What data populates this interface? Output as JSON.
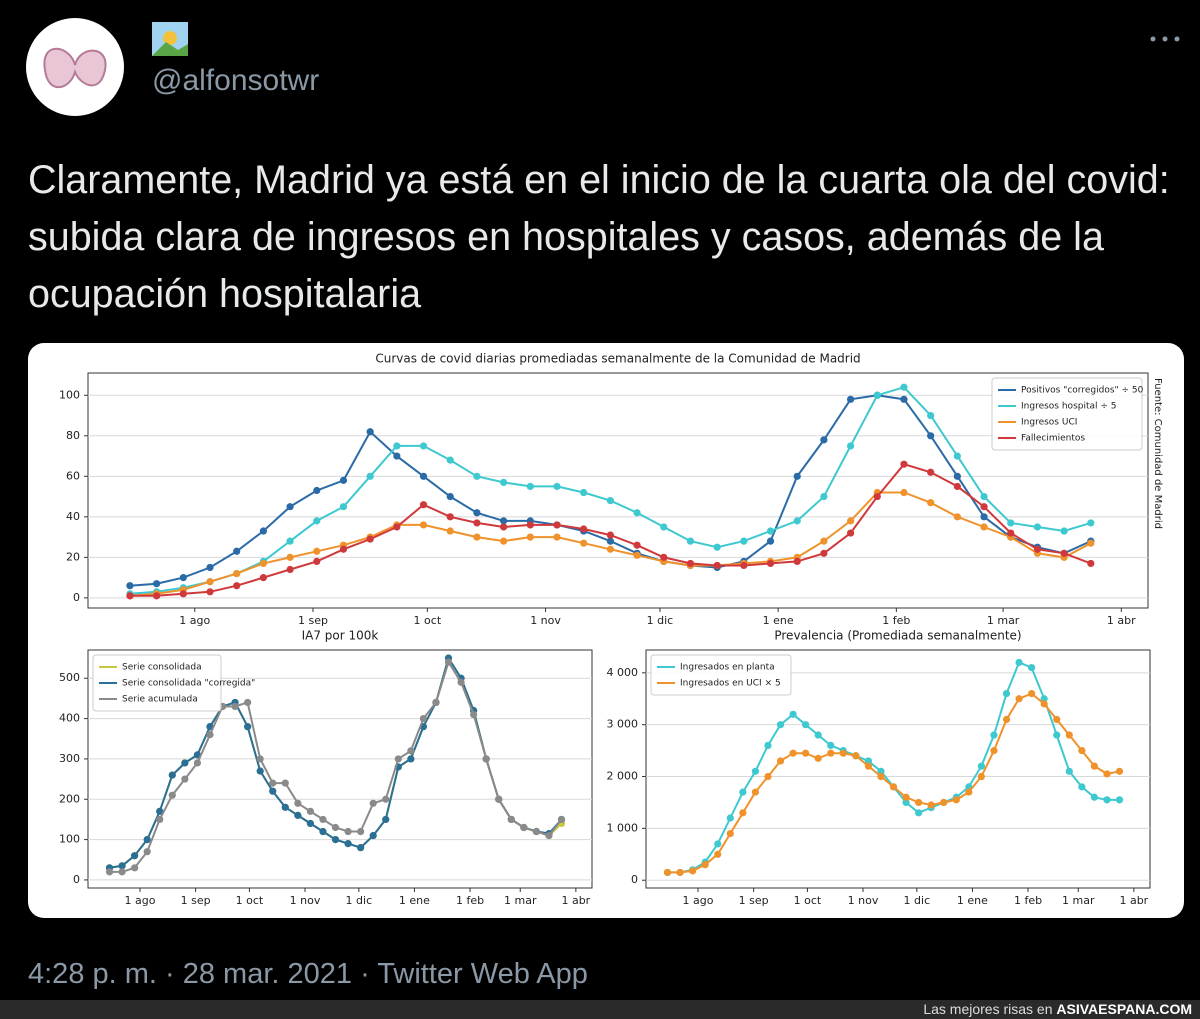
{
  "tweet": {
    "handle": "@alfonsotwr",
    "text": "Claramente, Madrid ya está en el inicio de la cuarta ola del covid: subida clara de ingresos en hospitales y casos, además de la ocupación hospitalaria",
    "timestamp": "4:28 p. m. · 28 mar. 2021 · Twitter Web App"
  },
  "footer": {
    "text": "Las mejores risas en",
    "site": "ASIVAESPANA.COM"
  },
  "chart_data": [
    {
      "type": "line",
      "title": "Curvas de covid diarias promediadas semanalmente de la Comunidad de Madrid",
      "annotation": "Fuente: Comunidad de Madrid",
      "x": [
        -17,
        -10,
        -3,
        4,
        11,
        18,
        25,
        32,
        39,
        46,
        53,
        60,
        67,
        74,
        81,
        88,
        95,
        102,
        109,
        116,
        123,
        130,
        137,
        144,
        151,
        158,
        165,
        172,
        179,
        186,
        193,
        200,
        207,
        214,
        221,
        228,
        235
      ],
      "xlim": [
        -28,
        250
      ],
      "xticks": [
        {
          "value": 0,
          "label": "1 ago"
        },
        {
          "value": 31,
          "label": "1 sep"
        },
        {
          "value": 61,
          "label": "1 oct"
        },
        {
          "value": 92,
          "label": "1 nov"
        },
        {
          "value": 122,
          "label": "1 dic"
        },
        {
          "value": 153,
          "label": "1 ene"
        },
        {
          "value": 184,
          "label": "1 feb"
        },
        {
          "value": 212,
          "label": "1 mar"
        },
        {
          "value": 243,
          "label": "1 abr"
        }
      ],
      "ylim": [
        -5,
        111
      ],
      "yticks": [
        0,
        20,
        40,
        60,
        80,
        100
      ],
      "grid": true,
      "legend": "upper right",
      "series": [
        {
          "name": "Positivos \"corregidos\" ÷ 50",
          "color": "#2a6aa6",
          "values": [
            6,
            7,
            10,
            15,
            23,
            33,
            45,
            53,
            58,
            82,
            70,
            60,
            50,
            42,
            38,
            38,
            36,
            33,
            28,
            22,
            18,
            16,
            15,
            18,
            28,
            60,
            78,
            98,
            100,
            98,
            80,
            60,
            40,
            30,
            25,
            22,
            28
          ]
        },
        {
          "name": "Ingresos hospital ÷ 5",
          "color": "#3ec8cf",
          "values": [
            2,
            3,
            5,
            8,
            12,
            18,
            28,
            38,
            45,
            60,
            75,
            75,
            68,
            60,
            57,
            55,
            55,
            52,
            48,
            42,
            35,
            28,
            25,
            28,
            33,
            38,
            50,
            75,
            100,
            104,
            90,
            70,
            50,
            37,
            35,
            33,
            37
          ]
        },
        {
          "name": "Ingresos UCI",
          "color": "#f0922b",
          "values": [
            1,
            2,
            4,
            8,
            12,
            17,
            20,
            23,
            26,
            30,
            36,
            36,
            33,
            30,
            28,
            30,
            30,
            27,
            24,
            21,
            18,
            16,
            16,
            17,
            18,
            20,
            28,
            38,
            52,
            52,
            47,
            40,
            35,
            30,
            22,
            20,
            27
          ]
        },
        {
          "name": "Fallecimientos",
          "color": "#d0393b",
          "values": [
            1,
            1,
            2,
            3,
            6,
            10,
            14,
            18,
            24,
            29,
            35,
            46,
            40,
            37,
            35,
            36,
            36,
            34,
            31,
            26,
            20,
            17,
            16,
            16,
            17,
            18,
            22,
            32,
            50,
            66,
            62,
            55,
            45,
            32,
            24,
            22,
            17
          ]
        }
      ]
    },
    {
      "type": "line",
      "title": "IA7 por 100k",
      "x": [
        -17,
        -10,
        -3,
        4,
        11,
        18,
        25,
        32,
        39,
        46,
        53,
        60,
        67,
        74,
        81,
        88,
        95,
        102,
        109,
        116,
        123,
        130,
        137,
        144,
        151,
        158,
        165,
        172,
        179,
        186,
        193,
        200,
        207,
        214,
        221,
        228,
        235
      ],
      "xlim": [
        -29,
        252
      ],
      "xticks": [
        {
          "value": 0,
          "label": "1 ago"
        },
        {
          "value": 31,
          "label": "1 sep"
        },
        {
          "value": 61,
          "label": "1 oct"
        },
        {
          "value": 92,
          "label": "1 nov"
        },
        {
          "value": 122,
          "label": "1 dic"
        },
        {
          "value": 153,
          "label": "1 ene"
        },
        {
          "value": 184,
          "label": "1 feb"
        },
        {
          "value": 212,
          "label": "1 mar"
        },
        {
          "value": 243,
          "label": "1 abr"
        }
      ],
      "ylim": [
        -20,
        570
      ],
      "yticks": [
        0,
        100,
        200,
        300,
        400,
        500
      ],
      "grid": true,
      "legend": "upper left",
      "series": [
        {
          "name": "Serie consolidada",
          "color": "#c8c83c",
          "values": [
            30,
            35,
            60,
            100,
            170,
            260,
            290,
            310,
            380,
            430,
            440,
            380,
            270,
            220,
            180,
            160,
            140,
            120,
            100,
            90,
            80,
            110,
            150,
            280,
            300,
            380,
            440,
            550,
            500,
            420,
            300,
            200,
            150,
            130,
            120,
            110,
            140
          ]
        },
        {
          "name": "Serie consolidada \"corregida\"",
          "color": "#2a6f97",
          "values": [
            30,
            35,
            60,
            100,
            170,
            260,
            290,
            310,
            380,
            430,
            440,
            380,
            270,
            220,
            180,
            160,
            140,
            120,
            100,
            90,
            80,
            110,
            150,
            280,
            300,
            380,
            440,
            550,
            500,
            420,
            300,
            200,
            150,
            130,
            120,
            115,
            150
          ]
        },
        {
          "name": "Serie acumulada",
          "color": "#8a8a8a",
          "values": [
            20,
            20,
            30,
            70,
            150,
            210,
            250,
            290,
            360,
            430,
            430,
            440,
            300,
            240,
            240,
            190,
            170,
            150,
            130,
            120,
            120,
            190,
            200,
            300,
            320,
            400,
            440,
            540,
            490,
            410,
            300,
            200,
            150,
            130,
            120,
            110,
            150
          ]
        }
      ]
    },
    {
      "type": "line",
      "title": "Prevalencia (Promediada semanalmente)",
      "x": [
        -17,
        -10,
        -3,
        4,
        11,
        18,
        25,
        32,
        39,
        46,
        53,
        60,
        67,
        74,
        81,
        88,
        95,
        102,
        109,
        116,
        123,
        130,
        137,
        144,
        151,
        158,
        165,
        172,
        179,
        186,
        193,
        200,
        207,
        214,
        221,
        228,
        235
      ],
      "xlim": [
        -29,
        252
      ],
      "xticks": [
        {
          "value": 0,
          "label": "1 ago"
        },
        {
          "value": 31,
          "label": "1 sep"
        },
        {
          "value": 61,
          "label": "1 oct"
        },
        {
          "value": 92,
          "label": "1 nov"
        },
        {
          "value": 122,
          "label": "1 dic"
        },
        {
          "value": 153,
          "label": "1 ene"
        },
        {
          "value": 184,
          "label": "1 feb"
        },
        {
          "value": 212,
          "label": "1 mar"
        },
        {
          "value": 243,
          "label": "1 abr"
        }
      ],
      "ylim": [
        -150,
        4440
      ],
      "yticks": [
        0,
        {
          "value": 1000,
          "label": "1 000"
        },
        {
          "value": 2000,
          "label": "2 000"
        },
        {
          "value": 3000,
          "label": "3 000"
        },
        {
          "value": 4000,
          "label": "4 000"
        }
      ],
      "grid": true,
      "legend": "upper left",
      "series": [
        {
          "name": "Ingresados en planta",
          "color": "#3ec8cf",
          "values": [
            150,
            150,
            200,
            350,
            700,
            1200,
            1700,
            2100,
            2600,
            3000,
            3200,
            3000,
            2800,
            2600,
            2500,
            2400,
            2300,
            2100,
            1800,
            1500,
            1300,
            1400,
            1500,
            1600,
            1800,
            2200,
            2800,
            3600,
            4200,
            4100,
            3500,
            2800,
            2100,
            1800,
            1600,
            1550,
            1550
          ]
        },
        {
          "name": "Ingresados en UCI × 5",
          "color": "#f0922b",
          "values": [
            150,
            150,
            180,
            300,
            500,
            900,
            1300,
            1700,
            2000,
            2300,
            2450,
            2450,
            2350,
            2450,
            2450,
            2400,
            2200,
            2000,
            1800,
            1600,
            1500,
            1450,
            1500,
            1550,
            1700,
            2000,
            2500,
            3100,
            3500,
            3600,
            3400,
            3100,
            2800,
            2500,
            2200,
            2050,
            2100
          ]
        }
      ]
    }
  ]
}
